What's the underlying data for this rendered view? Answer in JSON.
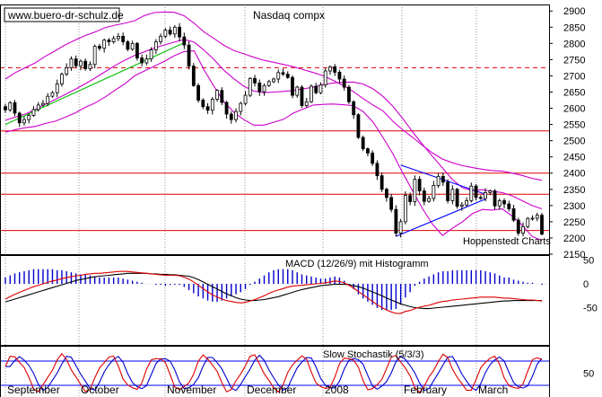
{
  "header": {
    "site": "www.buero-dr-schulz.de",
    "title": "Nasdaq compx",
    "credit": "Hoppenstedt Charts"
  },
  "chart_data": [
    {
      "type": "candlestick",
      "title": "Nasdaq compx",
      "ylim": [
        2150,
        2920
      ],
      "y_ticks": [
        2150,
        2200,
        2250,
        2300,
        2350,
        2400,
        2450,
        2500,
        2550,
        2600,
        2650,
        2700,
        2750,
        2800,
        2850,
        2900
      ],
      "x_labels": [
        "September",
        "October",
        "November",
        "December",
        "2008",
        "February",
        "March"
      ],
      "grid": "vertical dotted",
      "horizontal_lines": [
        {
          "value": 2725,
          "style": "dashed",
          "color": "#e00000"
        },
        {
          "value": 2530,
          "style": "solid",
          "color": "#e00000"
        },
        {
          "value": 2400,
          "style": "solid",
          "color": "#e00000"
        },
        {
          "value": 2335,
          "style": "solid",
          "color": "#e00000"
        },
        {
          "value": 2223,
          "style": "solid",
          "color": "#e00000"
        }
      ],
      "trendlines": [
        {
          "color": "#00c000",
          "from": [
            0,
            2550
          ],
          "to": [
            38,
            2802
          ]
        },
        {
          "color": "#0000ff",
          "from": [
            84,
            2425
          ],
          "to": [
            102,
            2335
          ]
        },
        {
          "color": "#0000ff",
          "from": [
            83,
            2205
          ],
          "to": [
            102,
            2320
          ]
        }
      ],
      "close": [
        2595,
        2617,
        2585,
        2555,
        2565,
        2578,
        2596,
        2610,
        2615,
        2637,
        2648,
        2675,
        2705,
        2725,
        2752,
        2731,
        2745,
        2722,
        2735,
        2791,
        2785,
        2810,
        2805,
        2815,
        2822,
        2805,
        2782,
        2800,
        2755,
        2740,
        2752,
        2780,
        2805,
        2822,
        2841,
        2829,
        2850,
        2820,
        2795,
        2730,
        2670,
        2625,
        2605,
        2594,
        2628,
        2655,
        2618,
        2582,
        2565,
        2590,
        2615,
        2640,
        2692,
        2678,
        2651,
        2670,
        2682,
        2690,
        2710,
        2705,
        2695,
        2640,
        2665,
        2608,
        2620,
        2668,
        2648,
        2672,
        2715,
        2728,
        2711,
        2690,
        2665,
        2620,
        2580,
        2510,
        2475,
        2462,
        2430,
        2392,
        2350,
        2325,
        2288,
        2215,
        2250,
        2331,
        2312,
        2381,
        2345,
        2313,
        2322,
        2362,
        2390,
        2372,
        2315,
        2350,
        2298,
        2302,
        2315,
        2360,
        2325,
        2322,
        2340,
        2345,
        2299,
        2315,
        2305,
        2290,
        2255,
        2215,
        2235,
        2260,
        2261,
        2270,
        2212
      ],
      "upper_band": [
        2690,
        2710,
        2725,
        2740,
        2760,
        2777,
        2795,
        2810,
        2824,
        2835,
        2848,
        2856,
        2862,
        2870,
        2886,
        2895,
        2897,
        2896,
        2885,
        2862,
        2835,
        2815,
        2794,
        2778,
        2768,
        2757,
        2748,
        2742,
        2735,
        2728,
        2719,
        2710,
        2700,
        2686,
        2670,
        2652,
        2630,
        2610,
        2592,
        2560,
        2533,
        2510,
        2485,
        2462,
        2443,
        2432,
        2423,
        2417,
        2412,
        2408,
        2406,
        2400,
        2393,
        2384,
        2378
      ],
      "middle_band": [
        2563,
        2573,
        2582,
        2596,
        2612,
        2627,
        2642,
        2658,
        2675,
        2693,
        2712,
        2731,
        2748,
        2763,
        2774,
        2786,
        2795,
        2804,
        2812,
        2804,
        2779,
        2750,
        2717,
        2691,
        2668,
        2653,
        2648,
        2650,
        2652,
        2655,
        2660,
        2665,
        2673,
        2678,
        2680,
        2681,
        2675,
        2660,
        2637,
        2606,
        2568,
        2527,
        2488,
        2451,
        2416,
        2380,
        2355,
        2346,
        2349,
        2344,
        2340,
        2330,
        2315,
        2300,
        2290
      ],
      "lower_band": [
        2526,
        2534,
        2540,
        2544,
        2553,
        2560,
        2572,
        2585,
        2602,
        2616,
        2634,
        2655,
        2675,
        2700,
        2715,
        2730,
        2745,
        2762,
        2775,
        2777,
        2718,
        2667,
        2620,
        2588,
        2565,
        2548,
        2548,
        2557,
        2566,
        2585,
        2598,
        2610,
        2612,
        2613,
        2611,
        2608,
        2590,
        2558,
        2510,
        2460,
        2400,
        2345,
        2290,
        2242,
        2208,
        2230,
        2250,
        2275,
        2288,
        2286,
        2290,
        2268,
        2240,
        2205,
        2192
      ]
    },
    {
      "type": "line",
      "title": "MACD (12/26/9) mit Histogramm",
      "y_ticks": [
        50,
        0,
        -50
      ],
      "series_macd": [
        -32,
        -27,
        -22,
        -18,
        -14,
        -10,
        -6,
        -3,
        0,
        3,
        6,
        8,
        11,
        13,
        15,
        17,
        18,
        20,
        21,
        22,
        22,
        23,
        24,
        25,
        26,
        26,
        26,
        25,
        24,
        23,
        22,
        21,
        20,
        19,
        18,
        18,
        18,
        17,
        14,
        10,
        4,
        -3,
        -10,
        -17,
        -23,
        -28,
        -32,
        -35,
        -37,
        -39,
        -40,
        -39,
        -36,
        -33,
        -29,
        -25,
        -20,
        -16,
        -13,
        -10,
        -7,
        -5,
        -4,
        -3,
        -2,
        -1,
        0,
        1,
        2,
        4,
        6,
        5,
        2,
        -3,
        -9,
        -16,
        -23,
        -30,
        -37,
        -44,
        -50,
        -55,
        -59,
        -62,
        -62,
        -58,
        -56,
        -52,
        -49,
        -47,
        -45,
        -42,
        -39,
        -37,
        -36,
        -34,
        -33,
        -32,
        -31,
        -30,
        -29,
        -28,
        -28,
        -28,
        -28,
        -29,
        -30,
        -30,
        -31,
        -32,
        -33,
        -34,
        -34,
        -35,
        -36
      ],
      "series_signal": [
        -38,
        -35,
        -32,
        -29,
        -26,
        -23,
        -20,
        -17,
        -14,
        -11,
        -8,
        -5,
        -2,
        1,
        4,
        7,
        9,
        11,
        13,
        15,
        16,
        17,
        18,
        19,
        20,
        21,
        22,
        22,
        22,
        22,
        22,
        21,
        21,
        20,
        20,
        19,
        19,
        18,
        17,
        16,
        13,
        9,
        4,
        -1,
        -6,
        -11,
        -16,
        -21,
        -25,
        -29,
        -32,
        -34,
        -35,
        -35,
        -34,
        -33,
        -31,
        -29,
        -27,
        -24,
        -21,
        -18,
        -15,
        -12,
        -10,
        -8,
        -6,
        -4,
        -3,
        -2,
        -1,
        -1,
        -1,
        -2,
        -4,
        -6,
        -9,
        -13,
        -17,
        -21,
        -25,
        -30,
        -34,
        -38,
        -42,
        -45,
        -48,
        -50,
        -51,
        -52,
        -52,
        -51,
        -50,
        -49,
        -48,
        -47,
        -46,
        -45,
        -44,
        -43,
        -42,
        -41,
        -40,
        -39,
        -38,
        -37,
        -36,
        -36,
        -35,
        -35,
        -35,
        -35,
        -35,
        -35,
        -35
      ],
      "histogram": [
        6,
        8,
        10,
        11,
        12,
        13,
        14,
        14,
        14,
        14,
        14,
        13,
        13,
        12,
        11,
        10,
        9,
        9,
        8,
        7,
        6,
        6,
        6,
        6,
        6,
        5,
        4,
        3,
        2,
        1,
        0,
        0,
        -1,
        -1,
        -2,
        -1,
        -1,
        -1,
        -3,
        -6,
        -9,
        -12,
        -14,
        -16,
        -17,
        -17,
        -16,
        -14,
        -12,
        -10,
        -8,
        -5,
        -1,
        2,
        5,
        8,
        11,
        13,
        14,
        14,
        14,
        13,
        11,
        9,
        8,
        7,
        6,
        5,
        5,
        6,
        7,
        6,
        3,
        -1,
        -5,
        -10,
        -14,
        -17,
        -20,
        -23,
        -25,
        -25,
        -25,
        -24,
        -20,
        -13,
        -8,
        -2,
        2,
        5,
        7,
        9,
        11,
        12,
        12,
        13,
        13,
        13,
        13,
        13,
        13,
        13,
        12,
        11,
        10,
        8,
        6,
        6,
        4,
        3,
        2,
        1,
        1,
        0,
        -1
      ]
    },
    {
      "type": "line",
      "title": "Slow Stochastik (5/3/3)",
      "y_ticks": [
        50
      ],
      "ylim": [
        0,
        100
      ],
      "levels": [
        80,
        20
      ]
    }
  ]
}
